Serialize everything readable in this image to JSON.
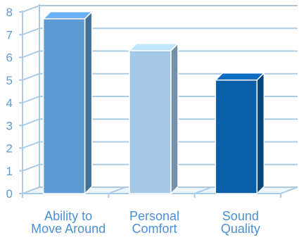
{
  "chart_data": {
    "type": "bar",
    "categories": [
      "Ability to\nMove Around",
      "Personal\nComfort",
      "Sound\nQuality"
    ],
    "values": [
      7.7,
      6.3,
      5.0
    ],
    "ylim": [
      0,
      8
    ],
    "y_ticks": [
      "0",
      "1",
      "2",
      "3",
      "4",
      "5",
      "6",
      "7",
      "8"
    ],
    "grid": true,
    "three_d": true,
    "colors": [
      "#5b9bd5",
      "#a6c8e8",
      "#0a5fa8"
    ],
    "title": "",
    "xlabel": "",
    "ylabel": ""
  }
}
